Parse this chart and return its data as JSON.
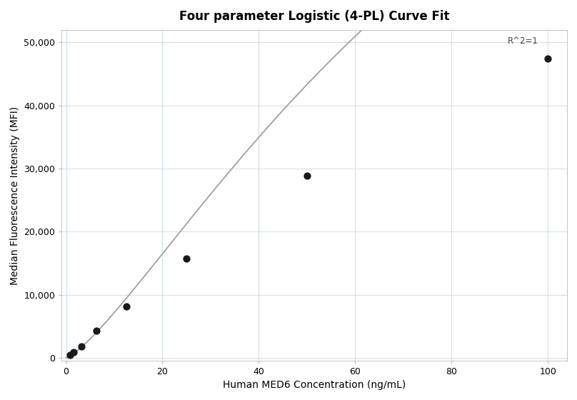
{
  "title": "Four parameter Logistic (4-PL) Curve Fit",
  "xlabel": "Human MED6 Concentration (ng/mL)",
  "ylabel": "Median Fluorescence Intensity (MFI)",
  "x_data": [
    0.781,
    1.563,
    3.125,
    6.25,
    12.5,
    25.0,
    50.0,
    100.0
  ],
  "y_data": [
    400,
    850,
    1800,
    4300,
    8100,
    15700,
    28900,
    47500
  ],
  "r_squared_label": "R^2=1",
  "xlim": [
    -1,
    104
  ],
  "ylim": [
    -500,
    52000
  ],
  "yticks": [
    0,
    10000,
    20000,
    30000,
    40000,
    50000
  ],
  "ytick_labels": [
    "0",
    "10,000",
    "20,000",
    "30,000",
    "40,000",
    "50,000"
  ],
  "xticks": [
    0,
    20,
    40,
    60,
    80,
    100
  ],
  "dot_color": "#1a1a1a",
  "dot_size": 55,
  "line_color": "#999999",
  "line_width": 1.2,
  "grid_color": "#c8d8e8",
  "grid_alpha": 1.0,
  "background_color": "#ffffff",
  "title_fontsize": 12,
  "label_fontsize": 10,
  "tick_fontsize": 9,
  "annotation_fontsize": 8.5
}
